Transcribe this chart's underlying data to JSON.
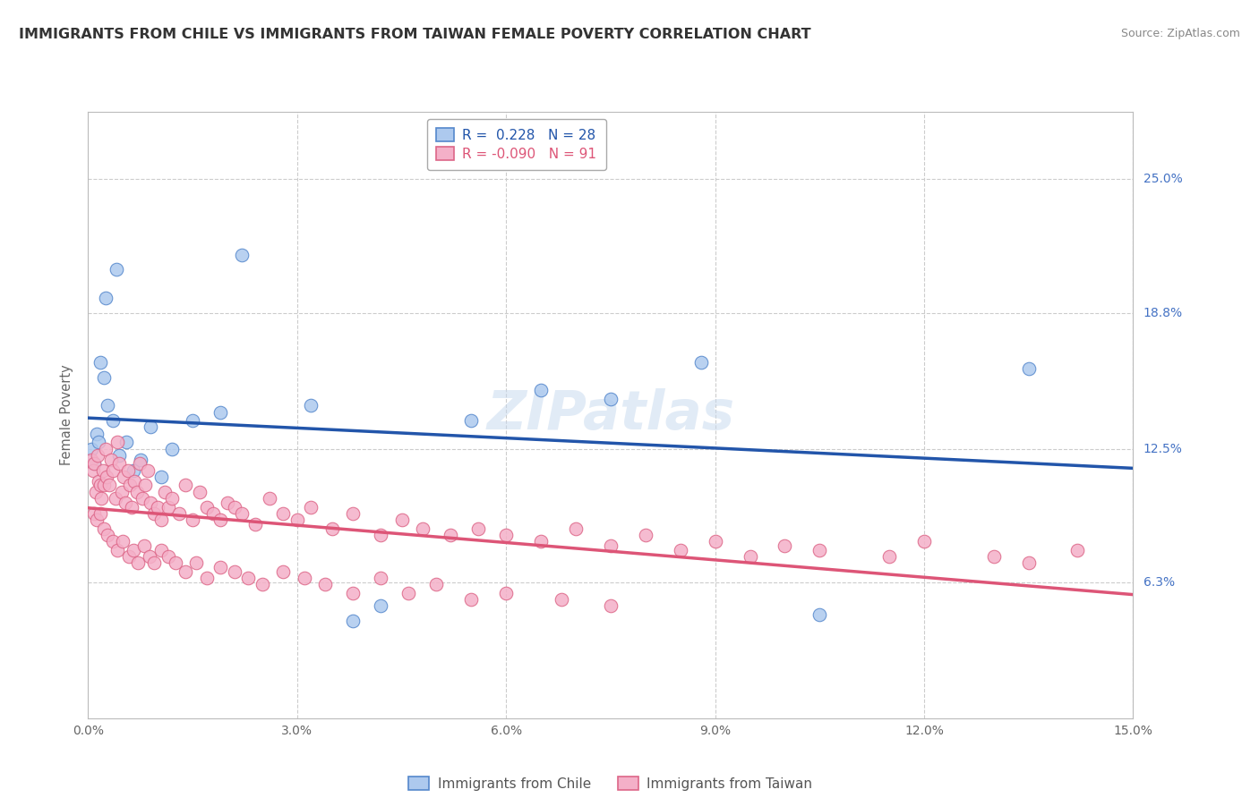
{
  "title": "IMMIGRANTS FROM CHILE VS IMMIGRANTS FROM TAIWAN FEMALE POVERTY CORRELATION CHART",
  "source": "Source: ZipAtlas.com",
  "ylabel": "Female Poverty",
  "x_min": 0.0,
  "x_max": 15.0,
  "y_min": 0.0,
  "y_max": 28.125,
  "y_ticks": [
    6.3,
    12.5,
    18.8,
    25.0
  ],
  "x_ticks": [
    0.0,
    3.0,
    6.0,
    9.0,
    12.0,
    15.0
  ],
  "chile_R": 0.228,
  "chile_N": 28,
  "taiwan_R": -0.09,
  "taiwan_N": 91,
  "chile_color": "#adc9ee",
  "taiwan_color": "#f4b0c8",
  "chile_edge_color": "#5588cc",
  "taiwan_edge_color": "#dd6688",
  "chile_line_color": "#2255aa",
  "taiwan_line_color": "#dd5577",
  "legend_label_chile": "Immigrants from Chile",
  "legend_label_taiwan": "Immigrants from Taiwan",
  "watermark": "ZIPatlas",
  "background_color": "#ffffff",
  "grid_color": "#cccccc",
  "right_label_color": "#4472c4",
  "chile_x": [
    0.05,
    0.08,
    0.12,
    0.15,
    0.18,
    0.22,
    0.28,
    0.35,
    0.45,
    0.55,
    0.65,
    0.75,
    0.9,
    1.05,
    1.2,
    1.5,
    1.9,
    2.2,
    3.2,
    5.5,
    6.5,
    7.5,
    8.8,
    13.5
  ],
  "chile_y": [
    12.5,
    11.8,
    13.2,
    12.8,
    16.5,
    15.8,
    14.5,
    13.8,
    12.2,
    12.8,
    11.5,
    12.0,
    13.5,
    11.2,
    12.5,
    13.8,
    14.2,
    21.5,
    14.5,
    13.8,
    15.2,
    14.8,
    16.5,
    16.2
  ],
  "chile_x2": [
    0.25,
    0.4,
    3.8,
    4.2,
    10.5
  ],
  "chile_y2": [
    19.5,
    20.8,
    4.5,
    5.2,
    4.8
  ],
  "taiwan_x": [
    0.05,
    0.07,
    0.09,
    0.11,
    0.13,
    0.15,
    0.17,
    0.19,
    0.21,
    0.23,
    0.25,
    0.27,
    0.3,
    0.33,
    0.36,
    0.39,
    0.42,
    0.45,
    0.48,
    0.51,
    0.54,
    0.57,
    0.6,
    0.63,
    0.66,
    0.7,
    0.74,
    0.78,
    0.82,
    0.86,
    0.9,
    0.95,
    1.0,
    1.05,
    1.1,
    1.15,
    1.2,
    1.3,
    1.4,
    1.5,
    1.6,
    1.7,
    1.8,
    1.9,
    2.0,
    2.1,
    2.2,
    2.4,
    2.6,
    2.8,
    3.0,
    3.2,
    3.5,
    3.8,
    4.2,
    4.5,
    4.8,
    5.2,
    5.6,
    6.0,
    6.5,
    7.0,
    7.5,
    8.0,
    8.5,
    9.0,
    9.5,
    10.0,
    10.5,
    11.5,
    12.0,
    13.0,
    13.5,
    14.2
  ],
  "taiwan_y": [
    12.0,
    11.5,
    11.8,
    10.5,
    12.2,
    11.0,
    10.8,
    10.2,
    11.5,
    10.8,
    12.5,
    11.2,
    10.8,
    12.0,
    11.5,
    10.2,
    12.8,
    11.8,
    10.5,
    11.2,
    10.0,
    11.5,
    10.8,
    9.8,
    11.0,
    10.5,
    11.8,
    10.2,
    10.8,
    11.5,
    10.0,
    9.5,
    9.8,
    9.2,
    10.5,
    9.8,
    10.2,
    9.5,
    10.8,
    9.2,
    10.5,
    9.8,
    9.5,
    9.2,
    10.0,
    9.8,
    9.5,
    9.0,
    10.2,
    9.5,
    9.2,
    9.8,
    8.8,
    9.5,
    8.5,
    9.2,
    8.8,
    8.5,
    8.8,
    8.5,
    8.2,
    8.8,
    8.0,
    8.5,
    7.8,
    8.2,
    7.5,
    8.0,
    7.8,
    7.5,
    8.2,
    7.5,
    7.2,
    7.8
  ],
  "taiwan_x_low": [
    0.08,
    0.12,
    0.18,
    0.22,
    0.28,
    0.35,
    0.42,
    0.5,
    0.58,
    0.65,
    0.72,
    0.8,
    0.88,
    0.95,
    1.05,
    1.15,
    1.25,
    1.4,
    1.55,
    1.7,
    1.9,
    2.1,
    2.3,
    2.5,
    2.8,
    3.1,
    3.4,
    3.8,
    4.2,
    4.6,
    5.0,
    5.5,
    6.0,
    6.8,
    7.5
  ],
  "taiwan_y_low": [
    9.5,
    9.2,
    9.5,
    8.8,
    8.5,
    8.2,
    7.8,
    8.2,
    7.5,
    7.8,
    7.2,
    8.0,
    7.5,
    7.2,
    7.8,
    7.5,
    7.2,
    6.8,
    7.2,
    6.5,
    7.0,
    6.8,
    6.5,
    6.2,
    6.8,
    6.5,
    6.2,
    5.8,
    6.5,
    5.8,
    6.2,
    5.5,
    5.8,
    5.5,
    5.2
  ]
}
